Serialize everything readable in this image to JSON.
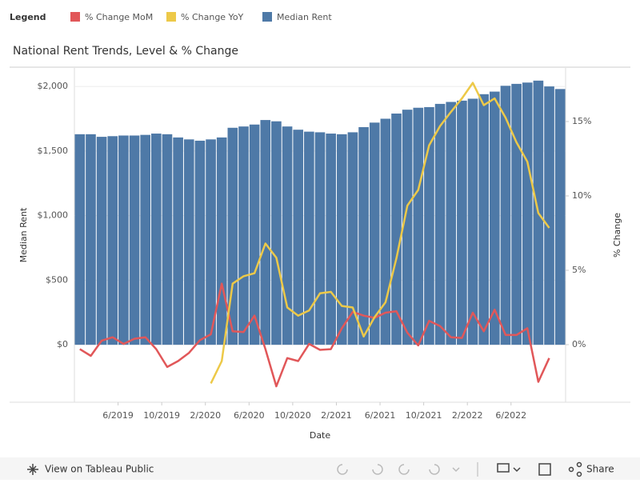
{
  "chart_data": {
    "type": "combo",
    "legend_title": "Legend",
    "title": "National Rent Trends, Level & % Change",
    "xlabel": "Date",
    "ylabel": "Median Rent",
    "y2label": "% Change",
    "x": [
      "2019-02",
      "2019-03",
      "2019-04",
      "2019-05",
      "2019-06",
      "2019-07",
      "2019-08",
      "2019-09",
      "2019-10",
      "2019-11",
      "2019-12",
      "2020-01",
      "2020-02",
      "2020-03",
      "2020-04",
      "2020-05",
      "2020-06",
      "2020-07",
      "2020-08",
      "2020-09",
      "2020-10",
      "2020-11",
      "2020-12",
      "2021-01",
      "2021-02",
      "2021-03",
      "2021-04",
      "2021-05",
      "2021-06",
      "2021-07",
      "2021-08",
      "2021-09",
      "2021-10",
      "2021-11",
      "2021-12",
      "2022-01",
      "2022-02",
      "2022-03",
      "2022-04",
      "2022-05",
      "2022-06",
      "2022-07",
      "2022-08",
      "2022-09",
      "2022-10"
    ],
    "xticks": [
      {
        "value": "2019-06",
        "label": "6/2019"
      },
      {
        "value": "2019-10",
        "label": "10/2019"
      },
      {
        "value": "2020-02",
        "label": "2/2020"
      },
      {
        "value": "2020-06",
        "label": "6/2020"
      },
      {
        "value": "2020-10",
        "label": "10/2020"
      },
      {
        "value": "2021-02",
        "label": "2/2021"
      },
      {
        "value": "2021-06",
        "label": "6/2021"
      },
      {
        "value": "2021-10",
        "label": "10/2021"
      },
      {
        "value": "2022-02",
        "label": "2/2022"
      },
      {
        "value": "2022-06",
        "label": "6/2022"
      }
    ],
    "series": [
      {
        "name": "% Change MoM",
        "type": "line",
        "axis": "y2",
        "color": "#e15759",
        "values": [
          -0.3,
          -0.75,
          0.27,
          0.5,
          0.05,
          0.4,
          0.5,
          -0.3,
          -1.5,
          -1.1,
          -0.55,
          0.3,
          0.7,
          4.1,
          0.9,
          0.85,
          1.95,
          -0.3,
          -2.8,
          -0.9,
          -1.1,
          0.05,
          -0.35,
          -0.3,
          1.1,
          2.2,
          1.95,
          1.8,
          2.15,
          2.25,
          0.8,
          -0.05,
          1.6,
          1.25,
          0.5,
          0.45,
          2.15,
          0.9,
          2.35,
          0.65,
          0.65,
          1.1,
          -2.5,
          -0.9,
          null
        ]
      },
      {
        "name": "% Change YoY",
        "type": "line",
        "axis": "y2",
        "color": "#edc948",
        "values": [
          null,
          null,
          null,
          null,
          null,
          null,
          null,
          null,
          null,
          null,
          null,
          null,
          -2.6,
          -1.1,
          4.1,
          4.6,
          4.8,
          6.8,
          5.85,
          2.5,
          1.95,
          2.3,
          3.45,
          3.55,
          2.6,
          2.5,
          0.55,
          1.85,
          2.85,
          5.8,
          9.35,
          10.4,
          13.4,
          14.7,
          15.65,
          16.55,
          17.6,
          16.1,
          16.55,
          15.25,
          13.6,
          12.3,
          8.85,
          7.85,
          null
        ]
      },
      {
        "name": "Median Rent",
        "type": "bar",
        "color": "#4e79a7",
        "values": [
          1630,
          1630,
          1610,
          1615,
          1620,
          1620,
          1625,
          1635,
          1630,
          1605,
          1590,
          1580,
          1590,
          1605,
          1680,
          1690,
          1705,
          1740,
          1730,
          1690,
          1665,
          1650,
          1645,
          1635,
          1630,
          1645,
          1685,
          1720,
          1750,
          1790,
          1820,
          1835,
          1840,
          1865,
          1880,
          1890,
          1905,
          1940,
          1960,
          2005,
          2020,
          2030,
          2045,
          2000,
          1980
        ]
      }
    ],
    "ylim": [
      -445,
      2143
    ],
    "yticks": [
      {
        "value": 0,
        "label": "$0"
      },
      {
        "value": 500,
        "label": "$500"
      },
      {
        "value": 1000,
        "label": "$1,000"
      },
      {
        "value": 1500,
        "label": "$1,500"
      },
      {
        "value": 2000,
        "label": "$2,000"
      }
    ],
    "y2lim": [
      -3.87,
      18.6
    ],
    "y2ticks": [
      {
        "value": 0,
        "label": "0%"
      },
      {
        "value": 5,
        "label": "5%"
      },
      {
        "value": 10,
        "label": "10%"
      },
      {
        "value": 15,
        "label": "15%"
      }
    ],
    "grid": true
  },
  "toolbar": {
    "view_link": "View on Tableau Public",
    "share": "Share"
  }
}
